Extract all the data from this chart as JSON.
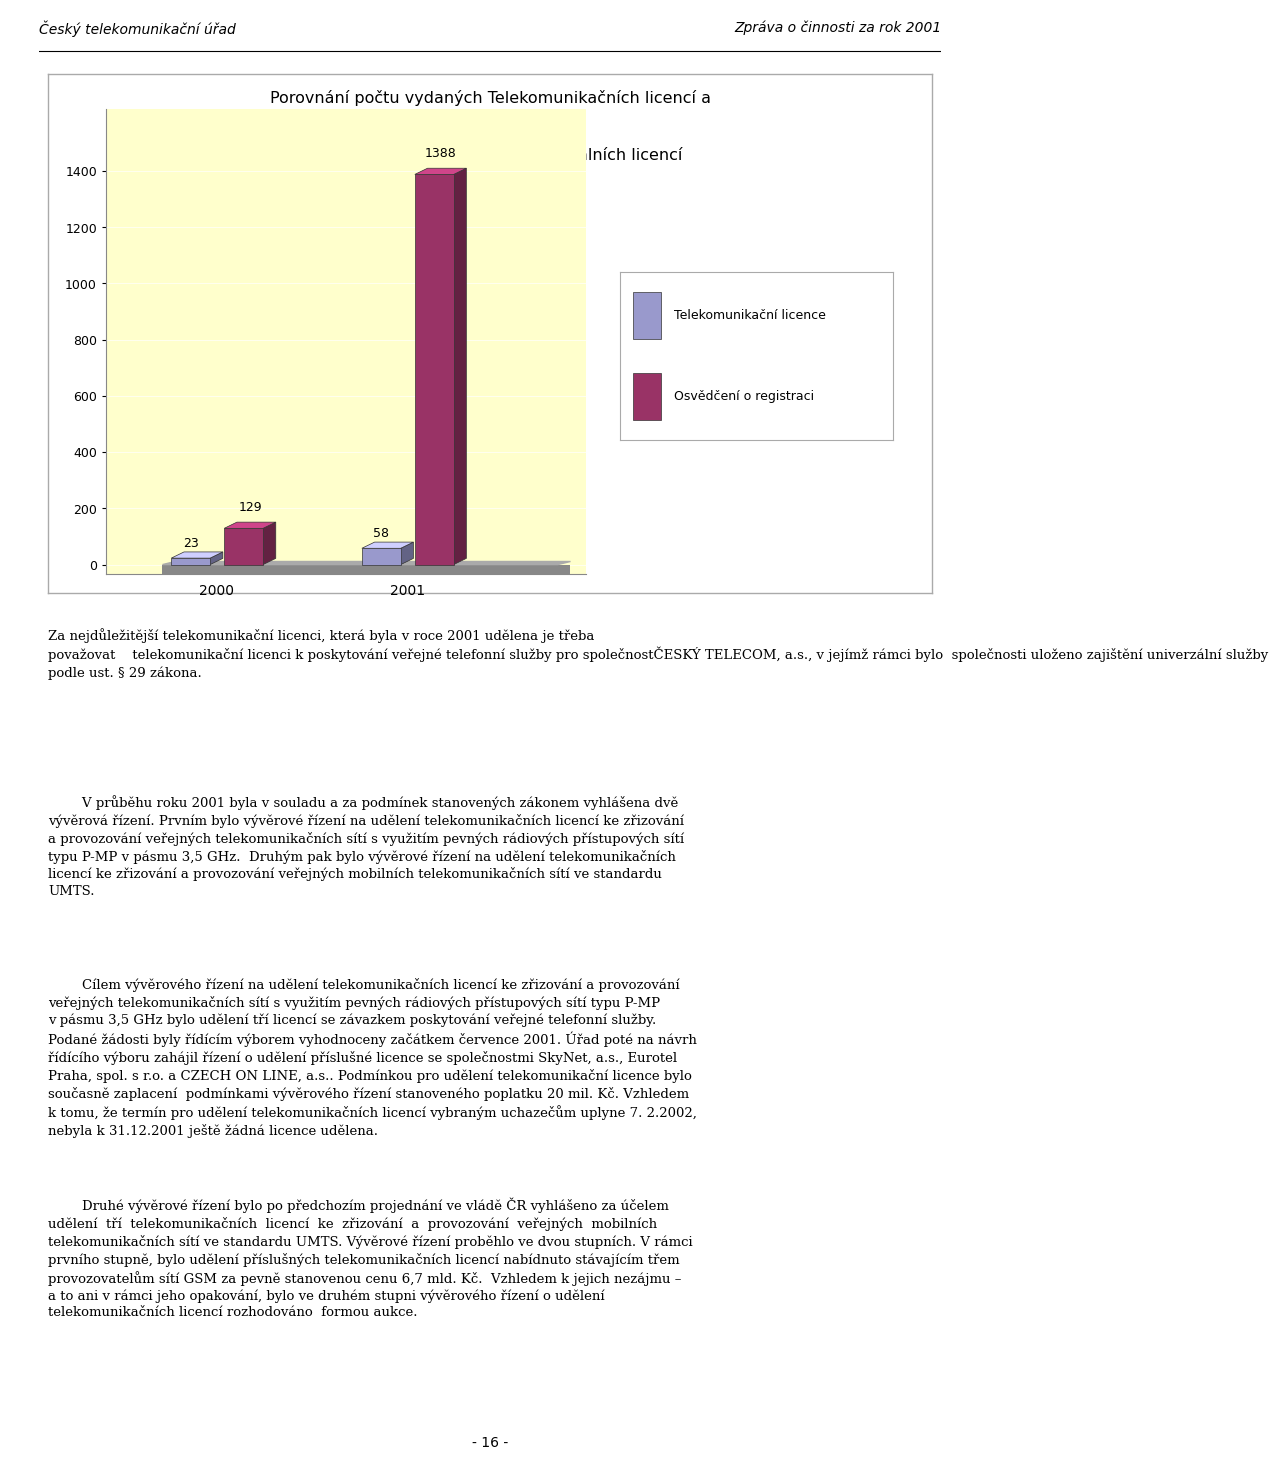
{
  "title_line1": "Porovnání počtu vydaných Telekomunikačních licencí a",
  "title_line2": "Osvědčení o registraci podle generálních licencí",
  "categories": [
    "2000",
    "2001"
  ],
  "telecom_values": [
    23,
    58
  ],
  "osvd_values": [
    129,
    1388
  ],
  "telecom_color": "#9999cc",
  "osvd_color": "#993366",
  "telecom_label": "Telekomunikační licence",
  "osvd_label": "Osvědčení o registraci",
  "ylim_max": 1500,
  "yticks": [
    0,
    200,
    400,
    600,
    800,
    1000,
    1200,
    1400
  ],
  "header_left": "Český telekomunikační úřad",
  "header_right": "Zpráva o činnosti za rok 2001",
  "page_number": "- 16 -",
  "chart_bg": "#ffffcc",
  "para1_first": "Za nejdůležitější telekomunikační licenci, která byla v roce 2001 udělena je třeba\npovažovat    telekomunikační licenci k poskytování veřejné telefonní služby pro společnost",
  "para1_bold": "ČESKÝ TELECOM, a.s.,",
  "para1_rest": " v jejímž rámci bylo  společnosti uloženo zajištění univerzální služby\npodle ust. § 29 zákona.",
  "para2": "        V průběhu roku 2001 byla v souladu a za podmínek stanovených zákonem vyhlášena dvě\nvývěrová řízení. Prvním bylo vývěrové řízení na udělení telekomunikačních licencí ke zřizování\na provozování veřejných telekomunikačních sítí s využitím pevných rádiových přístupových sítí\ntypu P-MP v pásmu 3,5 GHz.  Druhým pak bylo vývěrové řízení na udělení telekomunikačních\nlicencí ke zřizování a provozování veřejných mobilních telekomunikačních sítí ve standardu\nUMTS.",
  "para3": "        Cílem vývěrového řízení na udělení telekomunikačních licencí ke zřizování a provozování\nveřejných telekomunikačních sítí s využitím pevných rádiových přístupových sítí typu P-MP\nv pásmu 3,5 GHz bylo udělení tří licencí se závazkem poskytování veřejné telefonní služby.\nPodané žádosti byly řídícím výborem vyhodnoceny začátkem července 2001. Úřad poté na návrh\nřídícího výboru zahájil řízení o udělení příslušné licence se společnostmi SkyNet, a.s., Eurotel\nPraha, spol. s r.o. a CZECH ON LINE, a.s.. Podmínkou pro udělení telekomunikační licence bylo\nsoučasně zaplacení  podmínkami vývěrového řízení stanoveného poplatku 20 mil. Kč. Vzhledem\nk tomu, že termín pro udělení telekomunikačních licencí vybraným uchazečům uplyne 7. 2.2002,\nnebyla k 31.12.2001 ještě žádná licence udělena.",
  "para4": "        Druhé vývěrové řízení bylo po předchozím projednání ve vládě ČR vyhlášeno za účelem\nudělení  tří  telekomunikačních  licencí  ke  zřizování  a  provozování  veřejných  mobilních\ntelekomunikačních sítí ve standardu UMTS. Vývěrové řízení proběhlo ve dvou stupních. V rámci\nprvního stupně, bylo udělení příslušných telekomunikačních licencí nabídnuto stávajícím třem\nprovozovatelům sítí GSM za pevně stanovenou cenu 6,7 mld. Kč.  Vzhledem k jejich nezájmu –\na to ani v rámci jeho opakování, bylo ve druhém stupni vývěrového řízení o udělení\ntelekomunikačních licencí rozhodováno  formou aukce."
}
